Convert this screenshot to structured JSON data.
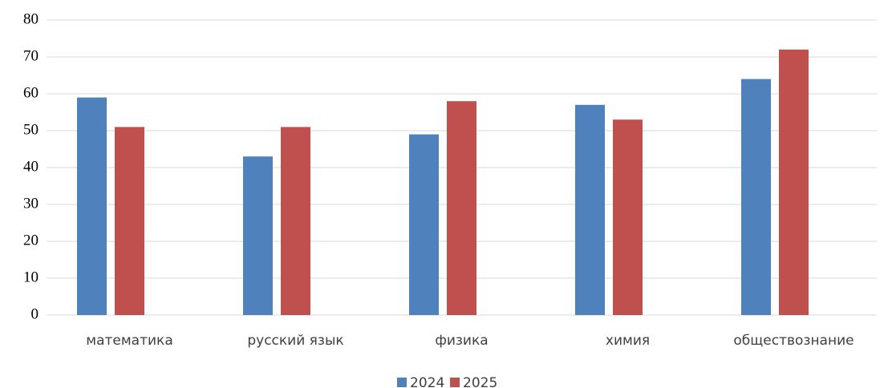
{
  "chart_data": {
    "type": "bar",
    "categories": [
      "математика",
      "русский язык",
      "физика",
      "химия",
      "обществознание"
    ],
    "series": [
      {
        "name": "2024",
        "color": "#4f81bd",
        "values": [
          59,
          43,
          49,
          57,
          64
        ]
      },
      {
        "name": "2025",
        "color": "#c0504d",
        "values": [
          51,
          51,
          58,
          53,
          72
        ]
      }
    ],
    "ylim": [
      0,
      80
    ],
    "yticks": [
      0,
      10,
      20,
      30,
      40,
      50,
      60,
      70,
      80
    ],
    "grid": true,
    "legend": "bottom"
  }
}
